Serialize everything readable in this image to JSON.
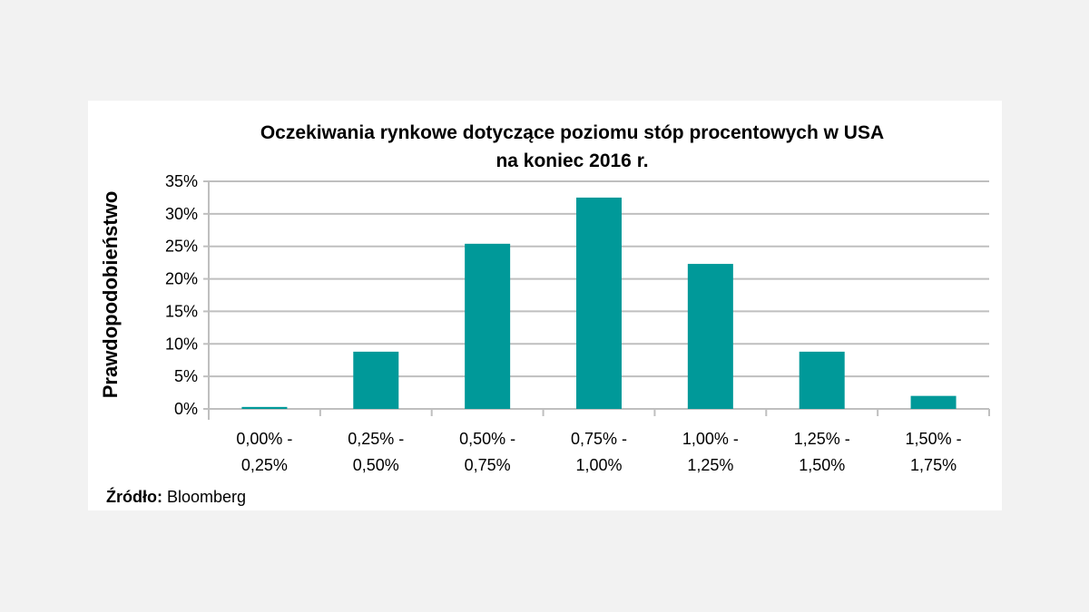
{
  "chart_data": {
    "type": "bar",
    "title": "Oczekiwania rynkowe dotyczące poziomu stóp procentowych w USA",
    "subtitle": "na koniec 2016 r.",
    "ylabel": "Prawdopodobieństwo",
    "xlabel": "",
    "categories": [
      [
        "0,00% -",
        "0,25%"
      ],
      [
        "0,25% -",
        "0,50%"
      ],
      [
        "0,50% -",
        "0,75%"
      ],
      [
        "0,75% -",
        "1,00%"
      ],
      [
        "1,00% -",
        "1,25%"
      ],
      [
        "1,25% -",
        "1,50%"
      ],
      [
        "1,50% -",
        "1,75%"
      ]
    ],
    "values": [
      0.3,
      8.8,
      25.4,
      32.5,
      22.3,
      8.8,
      2.0
    ],
    "ylim": [
      0,
      35
    ],
    "yticks": [
      "0%",
      "5%",
      "10%",
      "15%",
      "20%",
      "25%",
      "30%",
      "35%"
    ],
    "grid": true,
    "bar_color": "#009999"
  },
  "source": {
    "label": "Źródło:",
    "value": "Bloomberg"
  }
}
